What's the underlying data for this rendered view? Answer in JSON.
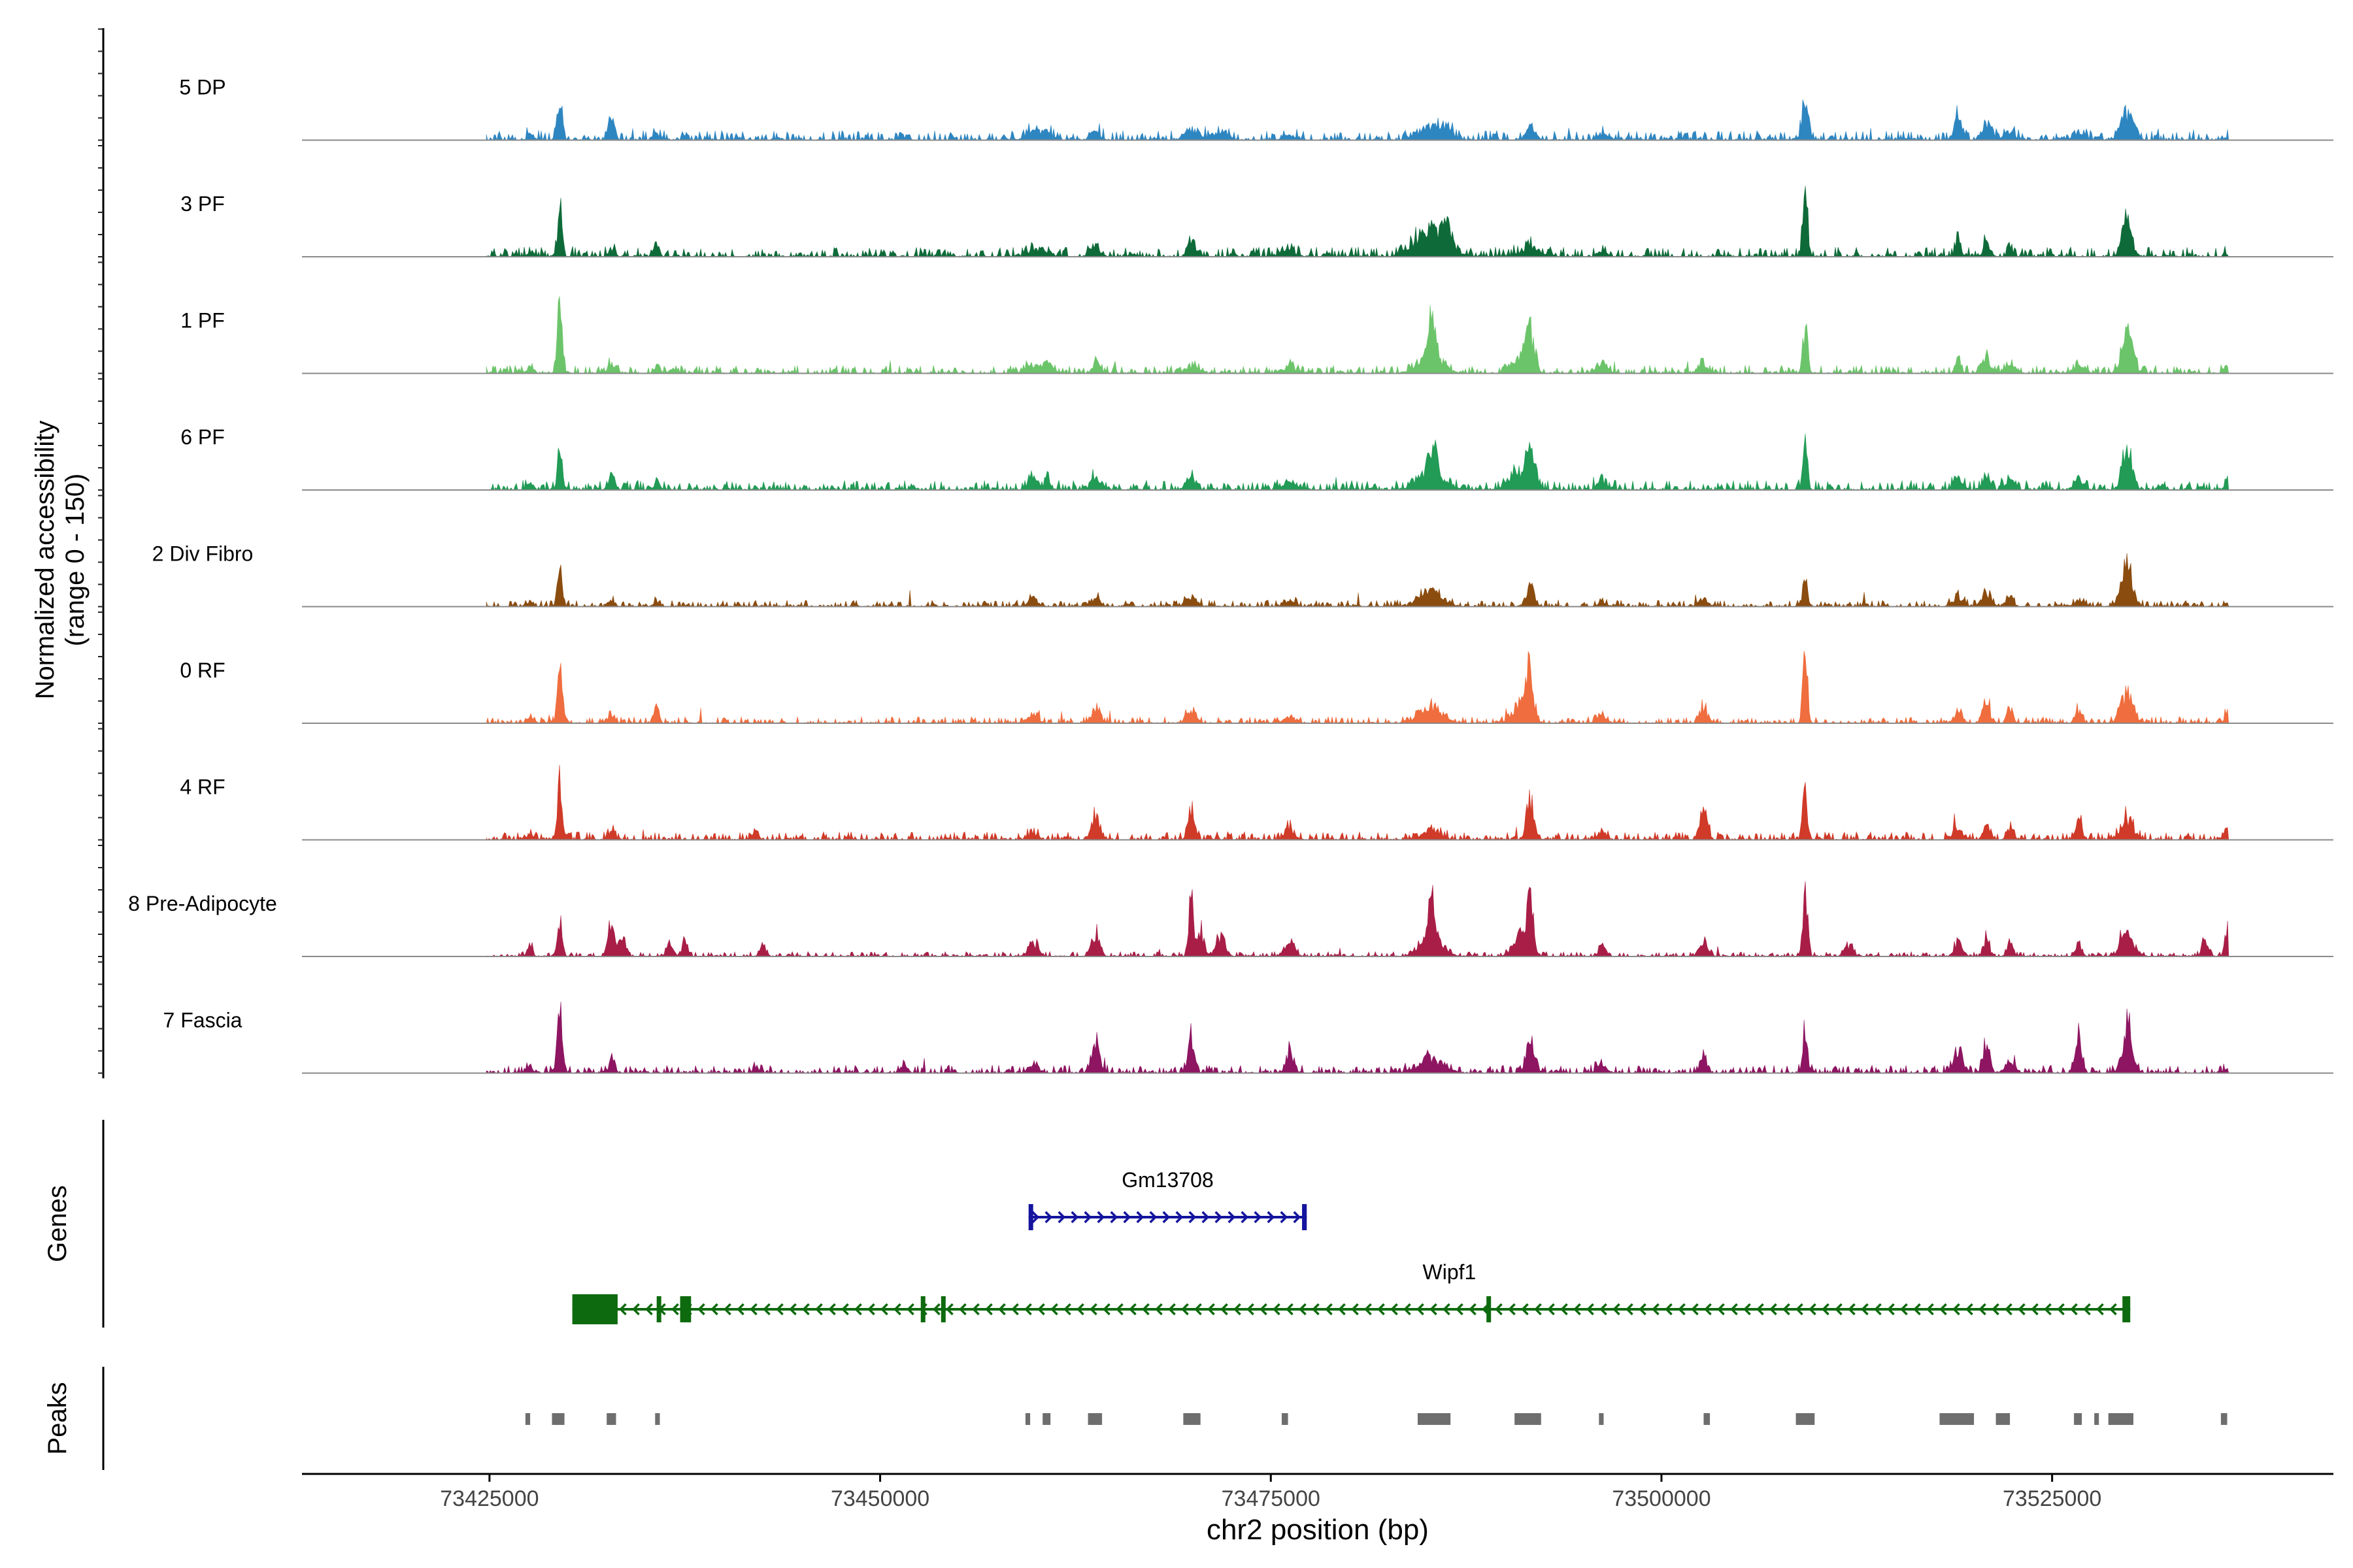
{
  "chart_data": {
    "type": "coverage-track",
    "title": "",
    "xlabel": "chr2 position (bp)",
    "ylabel_line1": "Normalized accessibility",
    "ylabel_line2": "(range 0 - 150)",
    "y_range": [
      0,
      150
    ],
    "x_range": [
      73413000,
      73543000
    ],
    "region": [
      73424800,
      73536300
    ],
    "x_ticks": [
      73425000,
      73450000,
      73475000,
      73500000,
      73525000
    ],
    "x_tick_labels": [
      "73425000",
      "73450000",
      "73475000",
      "73500000",
      "73525000"
    ],
    "panel_labels": {
      "genes": "Genes",
      "peaks": "Peaks"
    },
    "tracks": [
      {
        "name": "5 DP",
        "color": "#2E86C1",
        "baseline": 6,
        "peaks": [
          [
            73427600,
            8,
            200
          ],
          [
            73429500,
            55,
            150
          ],
          [
            73432800,
            40,
            180
          ],
          [
            73435700,
            10,
            250
          ],
          [
            73459800,
            12,
            500
          ],
          [
            73460700,
            10,
            300
          ],
          [
            73463800,
            14,
            300
          ],
          [
            73469900,
            15,
            400
          ],
          [
            73471500,
            8,
            600
          ],
          [
            73476200,
            7,
            400
          ],
          [
            73485200,
            18,
            700
          ],
          [
            73486200,
            14,
            400
          ],
          [
            73491600,
            18,
            300
          ],
          [
            73496200,
            8,
            300
          ],
          [
            73509200,
            60,
            200
          ],
          [
            73519000,
            50,
            200
          ],
          [
            73520800,
            22,
            300
          ],
          [
            73522300,
            12,
            300
          ],
          [
            73526700,
            10,
            300
          ],
          [
            73529800,
            40,
            400
          ],
          [
            73536200,
            3,
            200
          ]
        ]
      },
      {
        "name": "3 PF",
        "color": "#0E6B39",
        "baseline": 6,
        "peaks": [
          [
            73427600,
            8,
            200
          ],
          [
            73429500,
            68,
            150
          ],
          [
            73432800,
            12,
            200
          ],
          [
            73435700,
            22,
            150
          ],
          [
            73459800,
            8,
            400
          ],
          [
            73460700,
            8,
            300
          ],
          [
            73463800,
            12,
            300
          ],
          [
            73469900,
            25,
            200
          ],
          [
            73476200,
            10,
            400
          ],
          [
            73485200,
            40,
            900
          ],
          [
            73486300,
            40,
            250
          ],
          [
            73491600,
            14,
            600
          ],
          [
            73496200,
            8,
            300
          ],
          [
            73509200,
            90,
            150
          ],
          [
            73519000,
            30,
            150
          ],
          [
            73520800,
            20,
            200
          ],
          [
            73522300,
            20,
            150
          ],
          [
            73529800,
            55,
            300
          ],
          [
            73536200,
            3,
            200
          ]
        ]
      },
      {
        "name": "1 PF",
        "color": "#6CC46A",
        "baseline": 5,
        "peaks": [
          [
            73427600,
            8,
            200
          ],
          [
            73429500,
            90,
            150
          ],
          [
            73432800,
            15,
            200
          ],
          [
            73435700,
            12,
            150
          ],
          [
            73459800,
            12,
            400
          ],
          [
            73460700,
            15,
            300
          ],
          [
            73463800,
            18,
            200
          ],
          [
            73469900,
            10,
            400
          ],
          [
            73476200,
            8,
            400
          ],
          [
            73485300,
            60,
            250
          ],
          [
            73485200,
            22,
            800
          ],
          [
            73491600,
            55,
            250
          ],
          [
            73491000,
            20,
            600
          ],
          [
            73496200,
            14,
            300
          ],
          [
            73502700,
            12,
            300
          ],
          [
            73509200,
            65,
            150
          ],
          [
            73519000,
            25,
            150
          ],
          [
            73520800,
            20,
            300
          ],
          [
            73522300,
            12,
            300
          ],
          [
            73526700,
            10,
            300
          ],
          [
            73529800,
            55,
            350
          ],
          [
            73536200,
            10,
            200
          ]
        ]
      },
      {
        "name": "6 PF",
        "color": "#219B55",
        "baseline": 6,
        "peaks": [
          [
            73427600,
            10,
            200
          ],
          [
            73429500,
            55,
            150
          ],
          [
            73432800,
            20,
            200
          ],
          [
            73435700,
            15,
            150
          ],
          [
            73459800,
            22,
            300
          ],
          [
            73460700,
            25,
            150
          ],
          [
            73463800,
            15,
            300
          ],
          [
            73469900,
            20,
            300
          ],
          [
            73476200,
            10,
            400
          ],
          [
            73485300,
            45,
            300
          ],
          [
            73485200,
            20,
            800
          ],
          [
            73491600,
            50,
            250
          ],
          [
            73491000,
            25,
            600
          ],
          [
            73496200,
            12,
            300
          ],
          [
            73509200,
            58,
            150
          ],
          [
            73519000,
            15,
            300
          ],
          [
            73520800,
            22,
            200
          ],
          [
            73522300,
            15,
            300
          ],
          [
            73526700,
            15,
            300
          ],
          [
            73529800,
            55,
            300
          ],
          [
            73536200,
            20,
            150
          ]
        ]
      },
      {
        "name": "2 Div Fibro",
        "color": "#8B4C0F",
        "baseline": 4,
        "peaks": [
          [
            73427600,
            8,
            200
          ],
          [
            73429500,
            52,
            150
          ],
          [
            73432800,
            8,
            200
          ],
          [
            73435700,
            6,
            200
          ],
          [
            73459800,
            12,
            300
          ],
          [
            73463800,
            12,
            300
          ],
          [
            73469900,
            10,
            400
          ],
          [
            73476200,
            6,
            400
          ],
          [
            73485200,
            22,
            700
          ],
          [
            73491600,
            30,
            250
          ],
          [
            73496200,
            6,
            300
          ],
          [
            73502700,
            10,
            300
          ],
          [
            73509200,
            50,
            150
          ],
          [
            73519000,
            15,
            300
          ],
          [
            73520800,
            20,
            300
          ],
          [
            73522300,
            15,
            200
          ],
          [
            73526700,
            10,
            300
          ],
          [
            73529800,
            60,
            350
          ],
          [
            73536200,
            6,
            200
          ]
        ]
      },
      {
        "name": "0 RF",
        "color": "#EF6D3E",
        "baseline": 4,
        "peaks": [
          [
            73427600,
            8,
            200
          ],
          [
            73429500,
            85,
            150
          ],
          [
            73432800,
            15,
            200
          ],
          [
            73435700,
            22,
            150
          ],
          [
            73459800,
            12,
            300
          ],
          [
            73463800,
            22,
            250
          ],
          [
            73469900,
            20,
            300
          ],
          [
            73476200,
            8,
            400
          ],
          [
            73485200,
            25,
            700
          ],
          [
            73491600,
            70,
            200
          ],
          [
            73491000,
            30,
            500
          ],
          [
            73496200,
            10,
            300
          ],
          [
            73502700,
            22,
            250
          ],
          [
            73509200,
            90,
            150
          ],
          [
            73519000,
            20,
            250
          ],
          [
            73520800,
            35,
            200
          ],
          [
            73522300,
            20,
            200
          ],
          [
            73526700,
            20,
            200
          ],
          [
            73529800,
            40,
            400
          ],
          [
            73536200,
            18,
            150
          ]
        ]
      },
      {
        "name": "4 RF",
        "color": "#D03A28",
        "baseline": 5,
        "peaks": [
          [
            73427600,
            8,
            200
          ],
          [
            73429500,
            80,
            150
          ],
          [
            73432800,
            14,
            200
          ],
          [
            73442100,
            12,
            150
          ],
          [
            73459800,
            10,
            300
          ],
          [
            73463800,
            35,
            250
          ],
          [
            73469900,
            40,
            200
          ],
          [
            73476200,
            15,
            300
          ],
          [
            73485200,
            15,
            600
          ],
          [
            73491600,
            55,
            250
          ],
          [
            73496200,
            10,
            300
          ],
          [
            73502700,
            40,
            250
          ],
          [
            73509200,
            75,
            150
          ],
          [
            73519000,
            15,
            300
          ],
          [
            73520800,
            18,
            200
          ],
          [
            73522300,
            18,
            200
          ],
          [
            73526700,
            30,
            200
          ],
          [
            73529800,
            30,
            400
          ],
          [
            73536200,
            18,
            150
          ]
        ]
      },
      {
        "name": "8 Pre-Adipocyte",
        "color": "#A81E47",
        "baseline": 3,
        "peaks": [
          [
            73427600,
            20,
            150
          ],
          [
            73429500,
            60,
            150
          ],
          [
            73432800,
            50,
            200
          ],
          [
            73433500,
            30,
            200
          ],
          [
            73436500,
            20,
            200
          ],
          [
            73437500,
            20,
            200
          ],
          [
            73442500,
            15,
            200
          ],
          [
            73459800,
            20,
            300
          ],
          [
            73463800,
            35,
            250
          ],
          [
            73469900,
            85,
            150
          ],
          [
            73470500,
            40,
            200
          ],
          [
            73471800,
            30,
            300
          ],
          [
            73476200,
            25,
            300
          ],
          [
            73485300,
            60,
            200
          ],
          [
            73485200,
            25,
            700
          ],
          [
            73491600,
            70,
            200
          ],
          [
            73491000,
            30,
            500
          ],
          [
            73496200,
            20,
            200
          ],
          [
            73502700,
            25,
            250
          ],
          [
            73509200,
            95,
            150
          ],
          [
            73512000,
            15,
            300
          ],
          [
            73519000,
            20,
            250
          ],
          [
            73520800,
            25,
            200
          ],
          [
            73522300,
            20,
            200
          ],
          [
            73526700,
            20,
            200
          ],
          [
            73529800,
            35,
            400
          ],
          [
            73534800,
            30,
            200
          ],
          [
            73536200,
            40,
            150
          ]
        ]
      },
      {
        "name": "7 Fascia",
        "color": "#8D1561",
        "baseline": 5,
        "peaks": [
          [
            73427600,
            8,
            200
          ],
          [
            73429500,
            100,
            150
          ],
          [
            73432800,
            15,
            200
          ],
          [
            73442100,
            10,
            150
          ],
          [
            73451500,
            12,
            200
          ],
          [
            73459800,
            10,
            300
          ],
          [
            73463800,
            45,
            250
          ],
          [
            73469900,
            55,
            200
          ],
          [
            73476200,
            30,
            250
          ],
          [
            73485200,
            20,
            800
          ],
          [
            73491600,
            50,
            250
          ],
          [
            73496200,
            12,
            300
          ],
          [
            73502700,
            30,
            200
          ],
          [
            73509200,
            65,
            150
          ],
          [
            73519000,
            25,
            300
          ],
          [
            73520800,
            50,
            200
          ],
          [
            73522300,
            20,
            300
          ],
          [
            73526700,
            55,
            200
          ],
          [
            73529800,
            70,
            300
          ],
          [
            73536200,
            10,
            150
          ]
        ]
      }
    ],
    "genes": [
      {
        "name": "Gm13708",
        "color": "#14149E",
        "strand": "+",
        "start": 73459500,
        "end": 73477300,
        "exons": [
          [
            73459500,
            73459650
          ],
          [
            73477000,
            73477300
          ]
        ]
      },
      {
        "name": "Wipf1",
        "color": "#0E6A0E",
        "strand": "-",
        "start": 73430300,
        "end": 73530000,
        "exons": [
          [
            73430300,
            73433200
          ],
          [
            73435700,
            73435900
          ],
          [
            73437200,
            73437900
          ],
          [
            73452600,
            73452800
          ],
          [
            73453900,
            73454100
          ],
          [
            73488800,
            73489000
          ],
          [
            73529500,
            73530000
          ]
        ]
      }
    ],
    "peak_regions": [
      [
        73427300,
        73427600
      ],
      [
        73429000,
        73429800
      ],
      [
        73432500,
        73433100
      ],
      [
        73435600,
        73435900
      ],
      [
        73459300,
        73459600
      ],
      [
        73460400,
        73460900
      ],
      [
        73463300,
        73464200
      ],
      [
        73469400,
        73470500
      ],
      [
        73475700,
        73476100
      ],
      [
        73484400,
        73486500
      ],
      [
        73490600,
        73492300
      ],
      [
        73496000,
        73496300
      ],
      [
        73502700,
        73503100
      ],
      [
        73508600,
        73509800
      ],
      [
        73517800,
        73520000
      ],
      [
        73521400,
        73522300
      ],
      [
        73526400,
        73526900
      ],
      [
        73527700,
        73527900
      ],
      [
        73528600,
        73530200
      ],
      [
        73535800,
        73536200
      ]
    ]
  }
}
